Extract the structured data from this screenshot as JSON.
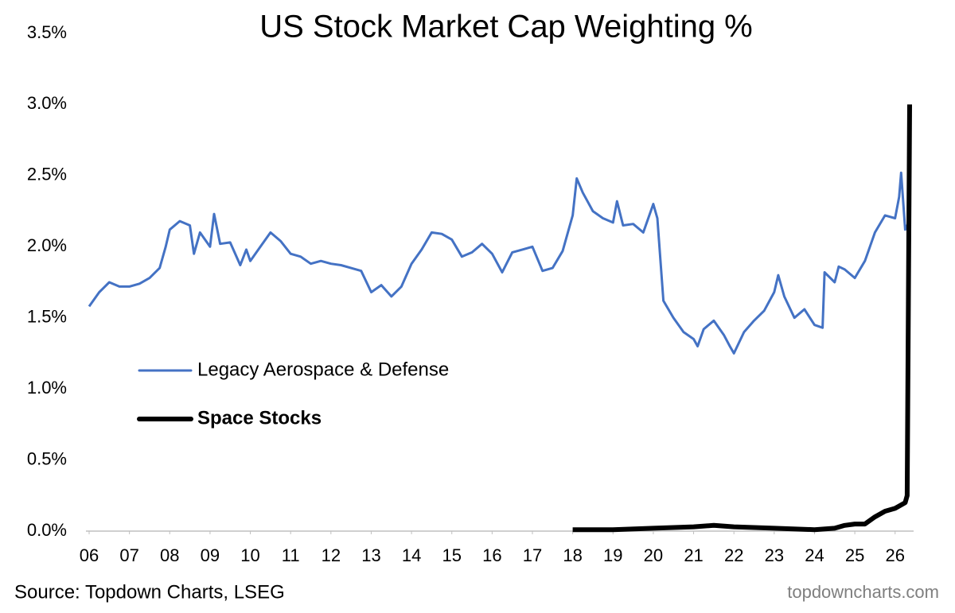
{
  "chart_data": {
    "type": "line",
    "title": "US Stock Market Cap Weighting %",
    "source": "Source: Topdown Charts, LSEG",
    "watermark": "topdowncharts.com",
    "xlim": [
      6,
      26.4
    ],
    "xticks": [
      {
        "value": 6,
        "label": "06"
      },
      {
        "value": 7,
        "label": "07"
      },
      {
        "value": 8,
        "label": "08"
      },
      {
        "value": 9,
        "label": "09"
      },
      10,
      11,
      12,
      13,
      14,
      15,
      16,
      17,
      18,
      19,
      20,
      21,
      22,
      23,
      24,
      25,
      26
    ],
    "ylim": [
      0,
      3.5
    ],
    "yticks": [
      {
        "value": 0,
        "label": "0.0%"
      },
      {
        "value": 0.5,
        "label": "0.5%"
      },
      {
        "value": 1,
        "label": "1.0%"
      },
      {
        "value": 1.5,
        "label": "1.5%"
      },
      {
        "value": 2,
        "label": "2.0%"
      },
      {
        "value": 2.5,
        "label": "2.5%"
      },
      {
        "value": 3,
        "label": "3.0%"
      },
      {
        "value": 3.5,
        "label": "3.5%"
      }
    ],
    "legend": "middle-left",
    "series": [
      {
        "name": "Legacy Aerospace & Defense",
        "color": "#4472c4",
        "x": [
          6.0,
          6.25,
          6.5,
          6.75,
          7.0,
          7.25,
          7.5,
          7.75,
          7.9,
          8.0,
          8.25,
          8.5,
          8.6,
          8.75,
          9.0,
          9.1,
          9.25,
          9.5,
          9.75,
          9.9,
          10.0,
          10.25,
          10.5,
          10.75,
          11.0,
          11.25,
          11.5,
          11.75,
          12.0,
          12.25,
          12.5,
          12.75,
          13.0,
          13.25,
          13.5,
          13.75,
          14.0,
          14.25,
          14.5,
          14.75,
          15.0,
          15.25,
          15.5,
          15.75,
          16.0,
          16.25,
          16.5,
          16.75,
          17.0,
          17.25,
          17.5,
          17.75,
          18.0,
          18.1,
          18.25,
          18.5,
          18.75,
          19.0,
          19.1,
          19.25,
          19.5,
          19.75,
          20.0,
          20.1,
          20.25,
          20.5,
          20.75,
          21.0,
          21.1,
          21.25,
          21.5,
          21.75,
          21.9,
          22.0,
          22.25,
          22.5,
          22.75,
          23.0,
          23.1,
          23.25,
          23.5,
          23.75,
          24.0,
          24.2,
          24.25,
          24.5,
          24.6,
          24.75,
          25.0,
          25.25,
          25.5,
          25.75,
          26.0,
          26.1,
          26.15,
          26.25,
          26.35
        ],
        "values": [
          1.58,
          1.68,
          1.75,
          1.72,
          1.72,
          1.74,
          1.78,
          1.85,
          2.0,
          2.12,
          2.18,
          2.15,
          1.95,
          2.1,
          2.0,
          2.23,
          2.02,
          2.03,
          1.87,
          1.98,
          1.9,
          2.0,
          2.1,
          2.04,
          1.95,
          1.93,
          1.88,
          1.9,
          1.88,
          1.87,
          1.85,
          1.83,
          1.68,
          1.73,
          1.65,
          1.72,
          1.88,
          1.98,
          2.1,
          2.09,
          2.05,
          1.93,
          1.96,
          2.02,
          1.95,
          1.82,
          1.96,
          1.98,
          2.0,
          1.83,
          1.85,
          1.97,
          2.22,
          2.48,
          2.38,
          2.25,
          2.2,
          2.17,
          2.32,
          2.15,
          2.16,
          2.1,
          2.3,
          2.2,
          1.62,
          1.5,
          1.4,
          1.35,
          1.3,
          1.42,
          1.48,
          1.38,
          1.3,
          1.25,
          1.4,
          1.48,
          1.55,
          1.68,
          1.8,
          1.65,
          1.5,
          1.56,
          1.45,
          1.43,
          1.82,
          1.75,
          1.86,
          1.84,
          1.78,
          1.9,
          2.1,
          2.22,
          2.2,
          2.35,
          2.52,
          2.12,
          2.18
        ]
      },
      {
        "name": "Space Stocks",
        "color": "#000000",
        "x": [
          18.0,
          19.0,
          20.0,
          21.0,
          21.5,
          22.0,
          23.0,
          24.0,
          24.5,
          24.75,
          25.0,
          25.25,
          25.5,
          25.75,
          26.0,
          26.25,
          26.3,
          26.36
        ],
        "values": [
          0.01,
          0.01,
          0.02,
          0.03,
          0.04,
          0.03,
          0.02,
          0.01,
          0.02,
          0.04,
          0.05,
          0.05,
          0.1,
          0.14,
          0.16,
          0.2,
          0.25,
          3.0
        ]
      }
    ]
  }
}
